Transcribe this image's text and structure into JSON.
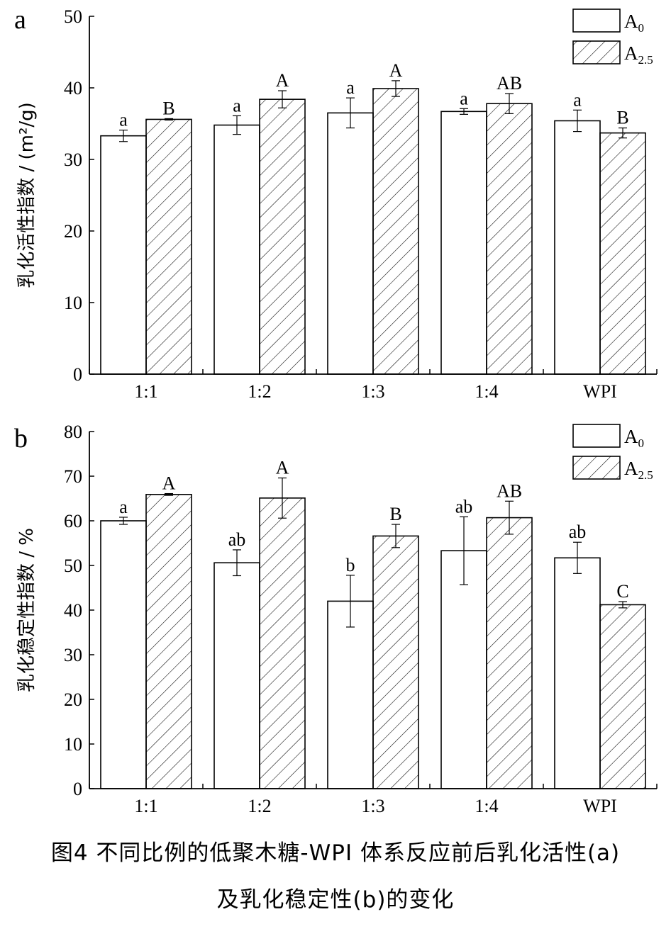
{
  "caption": {
    "line1": "图4 不同比例的低聚木糖-WPI 体系反应前后乳化活性(a)",
    "line2": "及乳化稳定性(b)的变化"
  },
  "chart_data": [
    {
      "panel_label": "a",
      "type": "bar",
      "ylabel": "乳化活性指数 / (m²/g)",
      "ylim": [
        0,
        50
      ],
      "yticks": [
        0,
        10,
        20,
        30,
        40,
        50
      ],
      "categories": [
        "1:1",
        "1:2",
        "1:3",
        "1:4",
        "WPI"
      ],
      "legend_position": "top-right",
      "series": [
        {
          "name": "A0",
          "name_base": "A",
          "name_sub": "0",
          "pattern": "open",
          "values": [
            33.3,
            34.8,
            36.5,
            36.7,
            35.4
          ],
          "errors": [
            0.8,
            1.3,
            2.1,
            0.4,
            1.5
          ],
          "letters": [
            "a",
            "a",
            "a",
            "a",
            "a"
          ]
        },
        {
          "name": "A2.5",
          "name_base": "A",
          "name_sub": "2.5",
          "pattern": "hatched",
          "values": [
            35.6,
            38.4,
            39.9,
            37.8,
            33.7
          ],
          "errors": [
            0.1,
            1.2,
            1.1,
            1.4,
            0.7
          ],
          "letters": [
            "B",
            "A",
            "A",
            "AB",
            "B"
          ]
        }
      ]
    },
    {
      "panel_label": "b",
      "type": "bar",
      "ylabel": "乳化稳定性指数 / %",
      "ylim": [
        0,
        80
      ],
      "yticks": [
        0,
        10,
        20,
        30,
        40,
        50,
        60,
        70,
        80
      ],
      "categories": [
        "1:1",
        "1:2",
        "1:3",
        "1:4",
        "WPI"
      ],
      "legend_position": "top-right",
      "series": [
        {
          "name": "A0",
          "name_base": "A",
          "name_sub": "0",
          "pattern": "open",
          "values": [
            60.0,
            50.6,
            42.0,
            53.3,
            51.7
          ],
          "errors": [
            0.8,
            2.9,
            5.8,
            7.6,
            3.5
          ],
          "letters": [
            "a",
            "ab",
            "b",
            "ab",
            "ab"
          ]
        },
        {
          "name": "A2.5",
          "name_base": "A",
          "name_sub": "2.5",
          "pattern": "hatched",
          "values": [
            65.9,
            65.1,
            56.6,
            60.7,
            41.2
          ],
          "errors": [
            0.2,
            4.5,
            2.6,
            3.7,
            0.7
          ],
          "letters": [
            "A",
            "A",
            "B",
            "AB",
            "C"
          ]
        }
      ]
    }
  ]
}
